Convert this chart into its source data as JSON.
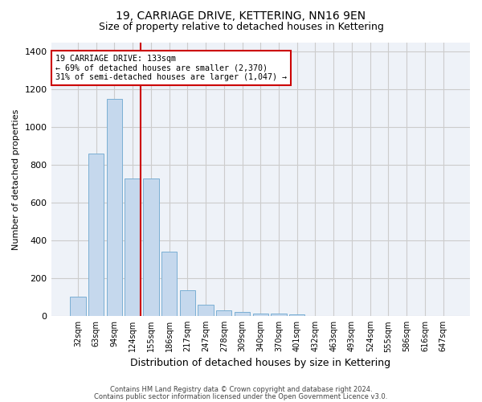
{
  "title": "19, CARRIAGE DRIVE, KETTERING, NN16 9EN",
  "subtitle": "Size of property relative to detached houses in Kettering",
  "xlabel": "Distribution of detached houses by size in Kettering",
  "ylabel": "Number of detached properties",
  "categories": [
    "32sqm",
    "63sqm",
    "94sqm",
    "124sqm",
    "155sqm",
    "186sqm",
    "217sqm",
    "247sqm",
    "278sqm",
    "309sqm",
    "340sqm",
    "370sqm",
    "401sqm",
    "432sqm",
    "463sqm",
    "493sqm",
    "524sqm",
    "555sqm",
    "586sqm",
    "616sqm",
    "647sqm"
  ],
  "values": [
    103,
    860,
    1150,
    730,
    730,
    340,
    135,
    60,
    30,
    20,
    15,
    15,
    10,
    0,
    0,
    0,
    0,
    0,
    0,
    0,
    0
  ],
  "bar_color": "#c5d8ed",
  "bar_edgecolor": "#7bafd4",
  "property_line_color": "#cc0000",
  "annotation_text": "19 CARRIAGE DRIVE: 133sqm\n← 69% of detached houses are smaller (2,370)\n31% of semi-detached houses are larger (1,047) →",
  "annotation_box_color": "#cc0000",
  "ylim": [
    0,
    1450
  ],
  "yticks": [
    0,
    200,
    400,
    600,
    800,
    1000,
    1200,
    1400
  ],
  "grid_color": "#cccccc",
  "bg_color": "#eef2f8",
  "footer_line1": "Contains HM Land Registry data © Crown copyright and database right 2024.",
  "footer_line2": "Contains public sector information licensed under the Open Government Licence v3.0.",
  "title_fontsize": 10,
  "subtitle_fontsize": 9,
  "ylabel_fontsize": 8,
  "xlabel_fontsize": 9
}
